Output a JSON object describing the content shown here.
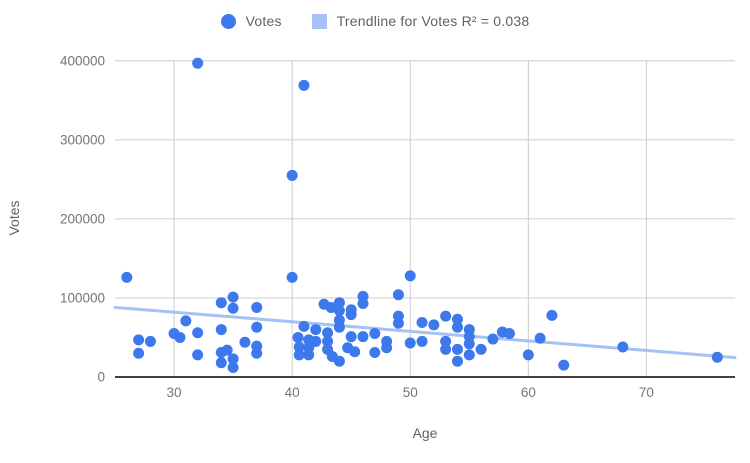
{
  "legend": {
    "votes_label": "Votes",
    "trendline_label": "Trendline for Votes R² = 0.038"
  },
  "colors": {
    "point": "#3D78ED",
    "trendline": "#A4C2F4",
    "gridline": "#CCCCCC",
    "baseline": "#424242",
    "tick_text": "#757575",
    "title_text": "#616161"
  },
  "chart_data": {
    "type": "scatter",
    "title": "",
    "xlabel": "Age",
    "ylabel": "Votes",
    "xlim": [
      25,
      77.5
    ],
    "ylim": [
      0,
      420000
    ],
    "x_ticks": [
      30,
      40,
      50,
      60,
      70
    ],
    "y_ticks": [
      0,
      100000,
      200000,
      300000,
      400000
    ],
    "grid": true,
    "legend_position": "top",
    "series": [
      {
        "name": "Votes",
        "points": [
          [
            26,
            126000
          ],
          [
            27,
            47000
          ],
          [
            28,
            45000
          ],
          [
            27,
            30000
          ],
          [
            30,
            55000
          ],
          [
            30.5,
            50000
          ],
          [
            31,
            71000
          ],
          [
            32,
            56000
          ],
          [
            32,
            28000
          ],
          [
            32,
            397000
          ],
          [
            34,
            94000
          ],
          [
            35,
            101000
          ],
          [
            35,
            87000
          ],
          [
            34,
            60000
          ],
          [
            36,
            44000
          ],
          [
            34,
            31000
          ],
          [
            34.5,
            34000
          ],
          [
            34,
            18000
          ],
          [
            35,
            23000
          ],
          [
            35,
            12000
          ],
          [
            37,
            88000
          ],
          [
            37,
            63000
          ],
          [
            37,
            39000
          ],
          [
            37,
            30000
          ],
          [
            40,
            255000
          ],
          [
            41,
            369000
          ],
          [
            40,
            126000
          ],
          [
            40.5,
            50000
          ],
          [
            41.4,
            47000
          ],
          [
            40.6,
            38000
          ],
          [
            41.4,
            37000
          ],
          [
            40.6,
            28000
          ],
          [
            41.4,
            28000
          ],
          [
            41,
            64000
          ],
          [
            42,
            60000
          ],
          [
            42,
            45000
          ],
          [
            42.7,
            92000
          ],
          [
            43.3,
            88000
          ],
          [
            44,
            94000
          ],
          [
            44,
            84000
          ],
          [
            44,
            72000
          ],
          [
            44,
            63000
          ],
          [
            43,
            56000
          ],
          [
            43,
            45000
          ],
          [
            43,
            35000
          ],
          [
            43.4,
            26000
          ],
          [
            44,
            20000
          ],
          [
            44.7,
            37000
          ],
          [
            45,
            85000
          ],
          [
            45,
            79000
          ],
          [
            45,
            51000
          ],
          [
            45.3,
            32000
          ],
          [
            46,
            102000
          ],
          [
            46,
            93000
          ],
          [
            46,
            51000
          ],
          [
            47,
            55000
          ],
          [
            47,
            31000
          ],
          [
            48,
            45000
          ],
          [
            48,
            37000
          ],
          [
            49,
            104000
          ],
          [
            49,
            77000
          ],
          [
            49,
            68000
          ],
          [
            50,
            128000
          ],
          [
            50,
            43000
          ],
          [
            51,
            69000
          ],
          [
            51,
            45000
          ],
          [
            52,
            66000
          ],
          [
            53,
            77000
          ],
          [
            53,
            45000
          ],
          [
            53,
            35000
          ],
          [
            54,
            73000
          ],
          [
            54,
            63000
          ],
          [
            54,
            35000
          ],
          [
            54,
            20000
          ],
          [
            55,
            60000
          ],
          [
            55,
            51000
          ],
          [
            55,
            42000
          ],
          [
            55,
            28000
          ],
          [
            56,
            35000
          ],
          [
            57,
            48000
          ],
          [
            57.8,
            57000
          ],
          [
            58.4,
            55000
          ],
          [
            60,
            28000
          ],
          [
            61,
            49000
          ],
          [
            62,
            78000
          ],
          [
            63,
            15000
          ],
          [
            68,
            38000
          ],
          [
            76,
            25000
          ]
        ]
      }
    ],
    "trendline": {
      "name": "Trendline for Votes",
      "r_squared": 0.038,
      "x1": 25,
      "y1": 88000,
      "x2": 77.5,
      "y2": 24500
    }
  }
}
